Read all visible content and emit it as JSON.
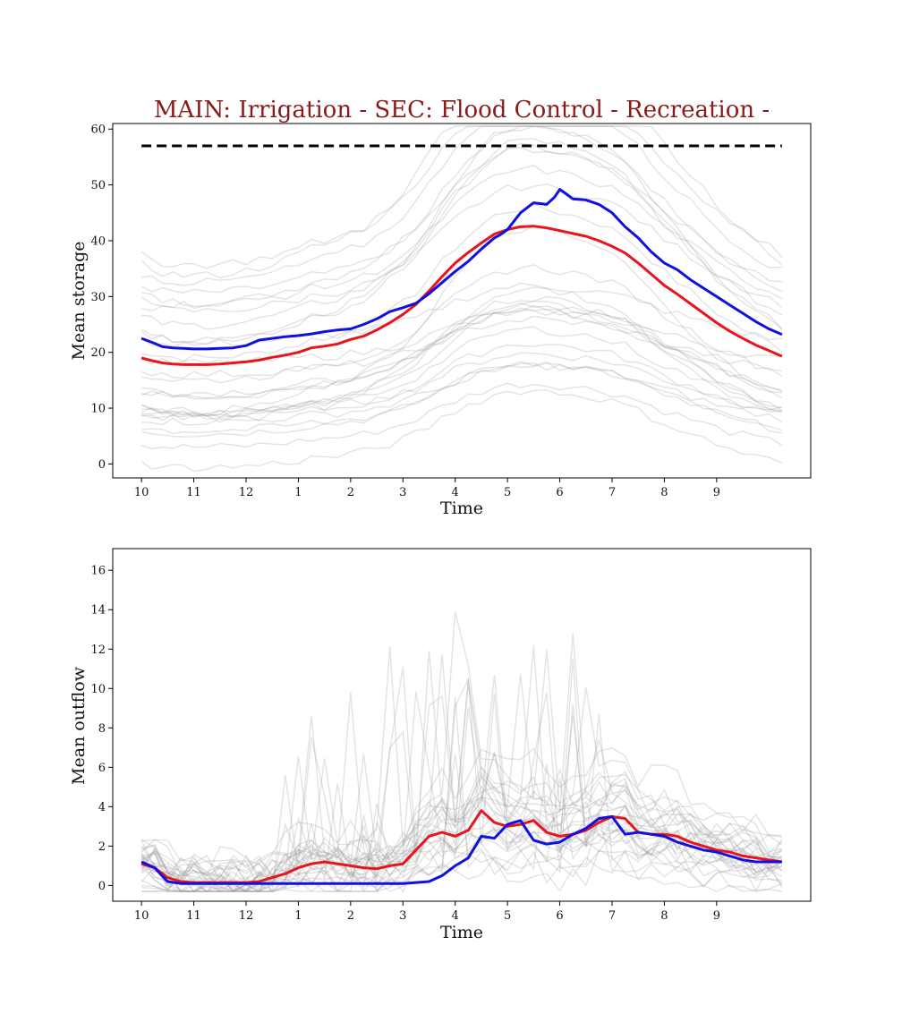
{
  "chart_data": [
    {
      "type": "line",
      "title": "MAIN: Irrigation - SEC: Flood Control - Recreation -",
      "title_color": "#8b1a1a",
      "xlabel": "Time",
      "ylabel": "Mean storage",
      "x_tick_labels": [
        "10",
        "11",
        "12",
        "1",
        "2",
        "3",
        "4",
        "5",
        "6",
        "7",
        "8",
        "9"
      ],
      "x_tick_positions": [
        0,
        1,
        2,
        3,
        4,
        5,
        6,
        7,
        8,
        9,
        10,
        11
      ],
      "xlim": [
        -0.55,
        12.8
      ],
      "ylim": [
        -2.5,
        61
      ],
      "y_ticks": [
        0,
        10,
        20,
        30,
        40,
        50,
        60
      ],
      "grid": false,
      "reference_line": {
        "y": 57,
        "color": "#000000",
        "style": "dashed"
      },
      "series": [
        {
          "color": "#e8141e",
          "x": [
            0,
            0.2,
            0.4,
            0.6,
            0.8,
            1,
            1.25,
            1.5,
            1.75,
            2,
            2.25,
            2.5,
            2.75,
            3,
            3.25,
            3.5,
            3.75,
            4,
            4.25,
            4.5,
            4.75,
            5,
            5.25,
            5.5,
            5.75,
            6,
            6.25,
            6.5,
            6.75,
            7,
            7.25,
            7.5,
            7.75,
            8,
            8.25,
            8.5,
            8.75,
            9,
            9.25,
            9.5,
            9.75,
            10,
            10.25,
            10.5,
            10.75,
            11,
            11.25,
            11.5,
            11.75,
            12,
            12.25
          ],
          "y": [
            19,
            18.5,
            18.1,
            17.9,
            17.8,
            17.8,
            17.8,
            17.9,
            18.1,
            18.3,
            18.6,
            19.1,
            19.5,
            20,
            20.8,
            21.1,
            21.5,
            22.3,
            22.9,
            24,
            25.3,
            26.8,
            28.6,
            31,
            33.6,
            36,
            37.9,
            39.6,
            41.2,
            42,
            42.5,
            42.6,
            42.3,
            41.8,
            41.3,
            40.8,
            40,
            39,
            37.8,
            36,
            34,
            32,
            30.4,
            28.7,
            27,
            25.3,
            23.8,
            22.5,
            21.3,
            20.3,
            19.3
          ]
        },
        {
          "color": "#1010e0",
          "x": [
            0,
            0.2,
            0.4,
            0.6,
            0.8,
            1,
            1.25,
            1.5,
            1.75,
            2,
            2.25,
            2.5,
            2.75,
            3,
            3.25,
            3.5,
            3.75,
            4,
            4.25,
            4.5,
            4.75,
            5,
            5.25,
            5.5,
            5.75,
            6,
            6.25,
            6.5,
            6.75,
            6.85,
            7,
            7.25,
            7.5,
            7.75,
            7.9,
            8,
            8.25,
            8.5,
            8.75,
            9,
            9.25,
            9.5,
            9.75,
            10,
            10.25,
            10.5,
            10.75,
            11,
            11.25,
            11.5,
            11.75,
            12,
            12.25
          ],
          "y": [
            22.5,
            21.8,
            21,
            20.8,
            20.7,
            20.6,
            20.6,
            20.7,
            20.8,
            21.2,
            22.2,
            22.5,
            22.8,
            23,
            23.3,
            23.7,
            24,
            24.2,
            25,
            26,
            27.3,
            28,
            28.8,
            30.5,
            32.5,
            34.5,
            36.3,
            38.5,
            40.5,
            41,
            42,
            45,
            46.8,
            46.5,
            47.8,
            49.2,
            47.5,
            47.3,
            46.5,
            45,
            42.5,
            40.5,
            38,
            36,
            34.8,
            33,
            31.5,
            30,
            28.5,
            27,
            25.5,
            24.2,
            23.2
          ]
        }
      ]
    },
    {
      "type": "line",
      "title": "",
      "xlabel": "Time",
      "ylabel": "Mean outflow",
      "x_tick_labels": [
        "10",
        "11",
        "12",
        "1",
        "2",
        "3",
        "4",
        "5",
        "6",
        "7",
        "8",
        "9"
      ],
      "x_tick_positions": [
        0,
        1,
        2,
        3,
        4,
        5,
        6,
        7,
        8,
        9,
        10,
        11
      ],
      "xlim": [
        -0.55,
        12.8
      ],
      "ylim": [
        -0.8,
        17.1
      ],
      "y_ticks": [
        0,
        2,
        4,
        6,
        8,
        10,
        12,
        14,
        16
      ],
      "grid": false,
      "series": [
        {
          "color": "#e8141e",
          "x": [
            0,
            0.25,
            0.5,
            0.75,
            1,
            1.25,
            1.5,
            1.75,
            2,
            2.25,
            2.5,
            2.75,
            3,
            3.25,
            3.5,
            3.75,
            4,
            4.25,
            4.5,
            4.75,
            5,
            5.25,
            5.5,
            5.75,
            6,
            6.25,
            6.5,
            6.75,
            7,
            7.25,
            7.5,
            7.75,
            8,
            8.25,
            8.5,
            8.75,
            9,
            9.25,
            9.5,
            9.75,
            10,
            10.25,
            10.5,
            10.75,
            11,
            11.25,
            11.5,
            11.75,
            12,
            12.25
          ],
          "y": [
            1.1,
            0.9,
            0.4,
            0.2,
            0.15,
            0.15,
            0.15,
            0.15,
            0.15,
            0.2,
            0.4,
            0.6,
            0.9,
            1.1,
            1.2,
            1.1,
            1.0,
            0.9,
            0.85,
            1.0,
            1.1,
            1.8,
            2.5,
            2.7,
            2.5,
            2.8,
            3.8,
            3.2,
            3.0,
            3.1,
            3.3,
            2.7,
            2.5,
            2.6,
            2.8,
            3.2,
            3.5,
            3.4,
            2.7,
            2.6,
            2.6,
            2.5,
            2.2,
            2.0,
            1.8,
            1.7,
            1.5,
            1.4,
            1.3,
            1.2
          ]
        },
        {
          "color": "#1010e0",
          "x": [
            0,
            0.25,
            0.5,
            0.75,
            1,
            1.5,
            2,
            2.5,
            3,
            3.5,
            4,
            4.5,
            5,
            5.5,
            5.75,
            6,
            6.25,
            6.5,
            6.75,
            7,
            7.25,
            7.5,
            7.75,
            8,
            8.25,
            8.5,
            8.75,
            9,
            9.25,
            9.5,
            9.75,
            10,
            10.25,
            10.5,
            10.75,
            11,
            11.25,
            11.5,
            11.75,
            12,
            12.25
          ],
          "y": [
            1.2,
            0.9,
            0.2,
            0.1,
            0.1,
            0.1,
            0.1,
            0.1,
            0.1,
            0.1,
            0.1,
            0.1,
            0.1,
            0.2,
            0.5,
            1.0,
            1.4,
            2.5,
            2.4,
            3.1,
            3.3,
            2.3,
            2.1,
            2.2,
            2.6,
            2.9,
            3.4,
            3.5,
            2.6,
            2.7,
            2.6,
            2.5,
            2.2,
            2.0,
            1.8,
            1.7,
            1.5,
            1.3,
            1.2,
            1.2,
            1.2
          ]
        }
      ]
    }
  ]
}
